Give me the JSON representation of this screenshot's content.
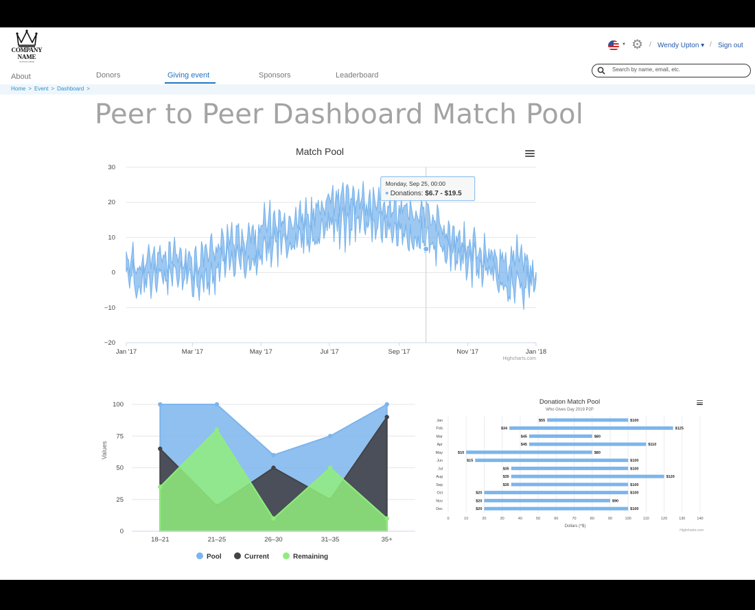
{
  "header": {
    "logo_name": "COMPANY NAME",
    "logo_slogan": "SLOGAN HERE",
    "user_name": "Wendy Upton ▾",
    "sign_out": "Sign out",
    "separator": "/",
    "flag_icon": "us-flag-icon",
    "settings_icon": "gear-icon"
  },
  "search": {
    "placeholder": "Search by name, email, etc."
  },
  "nav": {
    "tabs": [
      {
        "label": "About"
      },
      {
        "label": "Donors"
      },
      {
        "label": "Giving event",
        "active": true
      },
      {
        "label": "Sponsors"
      },
      {
        "label": "Leaderboard"
      }
    ]
  },
  "breadcrumb": {
    "items": [
      "Home",
      "Event",
      "Dashboard"
    ],
    "sep": ">"
  },
  "page": {
    "title": "Peer to Peer Dashboard Match Pool"
  },
  "colors": {
    "accent": "#1e74c4",
    "series_blue": "#7cb5ec",
    "series_dark": "#434348",
    "series_green": "#90ed7d"
  },
  "chart_data": [
    {
      "type": "area",
      "title": "Match Pool",
      "credit": "Highcharts.com",
      "ylim": [
        -20,
        30
      ],
      "yticks": [
        -20,
        -10,
        0,
        10,
        20,
        30
      ],
      "xticks": [
        "Jan '17",
        "Mar '17",
        "May '17",
        "Jul '17",
        "Sep '17",
        "Nov '17",
        "Jan '18"
      ],
      "xrange": [
        "2017-01-01",
        "2018-01-01"
      ],
      "grid": true,
      "series": [
        {
          "name": "Donations",
          "points_every_2_weeks": [
            {
              "date": "2017-01-01",
              "low": -1,
              "high": 5
            },
            {
              "date": "2017-01-15",
              "low": -6,
              "high": 3
            },
            {
              "date": "2017-01-29",
              "low": -3,
              "high": 6
            },
            {
              "date": "2017-02-12",
              "low": -4,
              "high": 6
            },
            {
              "date": "2017-02-26",
              "low": -2,
              "high": 4
            },
            {
              "date": "2017-03-12",
              "low": -5,
              "high": 7
            },
            {
              "date": "2017-03-26",
              "low": -1,
              "high": 10
            },
            {
              "date": "2017-04-09",
              "low": 2,
              "high": 11
            },
            {
              "date": "2017-04-23",
              "low": 0,
              "high": 12
            },
            {
              "date": "2017-05-07",
              "low": 5,
              "high": 16
            },
            {
              "date": "2017-05-21",
              "low": 7,
              "high": 16
            },
            {
              "date": "2017-06-04",
              "low": 8,
              "high": 17
            },
            {
              "date": "2017-06-18",
              "low": 7,
              "high": 19
            },
            {
              "date": "2017-07-02",
              "low": 12,
              "high": 22
            },
            {
              "date": "2017-07-16",
              "low": 11,
              "high": 22
            },
            {
              "date": "2017-07-30",
              "low": 13,
              "high": 22
            },
            {
              "date": "2017-08-13",
              "low": 11,
              "high": 21
            },
            {
              "date": "2017-08-27",
              "low": 10,
              "high": 20
            },
            {
              "date": "2017-09-10",
              "low": 8,
              "high": 18
            },
            {
              "date": "2017-09-25",
              "low": 6.7,
              "high": 19.5
            },
            {
              "date": "2017-10-09",
              "low": 4,
              "high": 14
            },
            {
              "date": "2017-10-23",
              "low": 2,
              "high": 10
            },
            {
              "date": "2017-11-06",
              "low": 1,
              "high": 9
            },
            {
              "date": "2017-11-20",
              "low": 0,
              "high": 7
            },
            {
              "date": "2017-12-04",
              "low": -6,
              "high": 4
            },
            {
              "date": "2017-12-18",
              "low": -7,
              "high": 7
            },
            {
              "date": "2018-01-01",
              "low": -2,
              "high": 0
            }
          ]
        }
      ],
      "tooltip": {
        "date": "Monday, Sep 25, 00:00",
        "series": "Donations:",
        "value": "$6.7 - $19.5"
      }
    },
    {
      "type": "area",
      "ylabel": "Values",
      "ylim": [
        0,
        100
      ],
      "yticks": [
        0,
        25,
        50,
        75,
        100
      ],
      "categories": [
        "18-21",
        "21-25",
        "26-30",
        "31-35",
        "35+"
      ],
      "series": [
        {
          "name": "Pool",
          "values": [
            100,
            100,
            60,
            75,
            100
          ]
        },
        {
          "name": "Current",
          "values": [
            65,
            20,
            50,
            25,
            90
          ]
        },
        {
          "name": "Remaining",
          "values": [
            35,
            80,
            10,
            50,
            10
          ]
        }
      ],
      "legend": "bottom"
    },
    {
      "type": "bar",
      "title": "Donation Match Pool",
      "subtitle": "Who Gives Day 2019 P2P",
      "xlabel": "Dollars (^$)",
      "credit": "Highcharts.com",
      "xlim": [
        0,
        140
      ],
      "xticks": [
        0,
        10,
        20,
        30,
        40,
        50,
        60,
        70,
        80,
        90,
        100,
        110,
        120,
        130,
        140
      ],
      "categories": [
        "Jan",
        "Feb",
        "Mar",
        "Apr",
        "May",
        "Jun",
        "Jul",
        "Aug",
        "Sep",
        "Oct",
        "Nov",
        "Dec"
      ],
      "ranges": [
        {
          "low": 55,
          "high": 100,
          "low_label": "$55",
          "high_label": "$100"
        },
        {
          "low": 34,
          "high": 125,
          "low_label": "$34",
          "high_label": "$125"
        },
        {
          "low": 45,
          "high": 80,
          "low_label": "$45",
          "high_label": "$80"
        },
        {
          "low": 45,
          "high": 110,
          "low_label": "$45",
          "high_label": "$110"
        },
        {
          "low": 10,
          "high": 80,
          "low_label": "$10",
          "high_label": "$80"
        },
        {
          "low": 15,
          "high": 100,
          "low_label": "$15",
          "high_label": "$100"
        },
        {
          "low": 35,
          "high": 100,
          "low_label": "$35",
          "high_label": "$100"
        },
        {
          "low": 35,
          "high": 120,
          "low_label": "$35",
          "high_label": "$120"
        },
        {
          "low": 35,
          "high": 100,
          "low_label": "$35",
          "high_label": "$100"
        },
        {
          "low": 20,
          "high": 100,
          "low_label": "$20",
          "high_label": "$100"
        },
        {
          "low": 20,
          "high": 90,
          "low_label": "$20",
          "high_label": "$90"
        },
        {
          "low": 20,
          "high": 100,
          "low_label": "$20",
          "high_label": "$100"
        }
      ]
    }
  ]
}
